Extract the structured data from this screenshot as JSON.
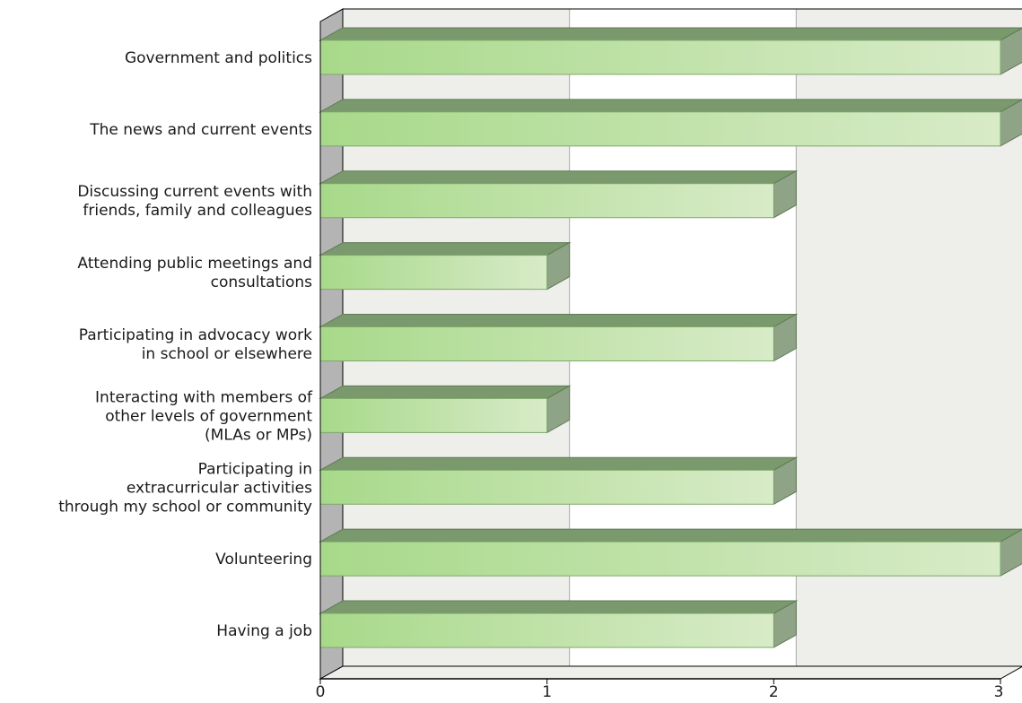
{
  "chart_data": {
    "type": "bar",
    "orientation": "horizontal",
    "categories": [
      [
        "Government and politics"
      ],
      [
        "The news and current events"
      ],
      [
        "Discussing current events with",
        "friends, family and colleagues"
      ],
      [
        "Attending public meetings and",
        "consultations"
      ],
      [
        "Participating in advocacy work",
        "in school or elsewhere"
      ],
      [
        "Interacting with members of",
        "other levels of government",
        "(MLAs or MPs)"
      ],
      [
        "Participating in",
        "extracurricular activities",
        "through my school or community"
      ],
      [
        "Volunteering"
      ],
      [
        "Having a job"
      ]
    ],
    "values": [
      3,
      3,
      2,
      1,
      2,
      1,
      2,
      3,
      2
    ],
    "xticks": [
      "0",
      "1",
      "2",
      "3"
    ],
    "xlim": [
      0,
      3
    ],
    "grid": true,
    "style": "3d",
    "colors": {
      "bar_light": "#d8ebc8",
      "bar_dark": "#a8d98a",
      "bar_top": "#7a9a6e",
      "bar_side": "#8fa487",
      "band_shaded": "#eeeeea",
      "band_plain": "#ffffff",
      "wall": "#b4b4b4",
      "axis": "#000000",
      "gridline": "#aaaaaa"
    }
  }
}
